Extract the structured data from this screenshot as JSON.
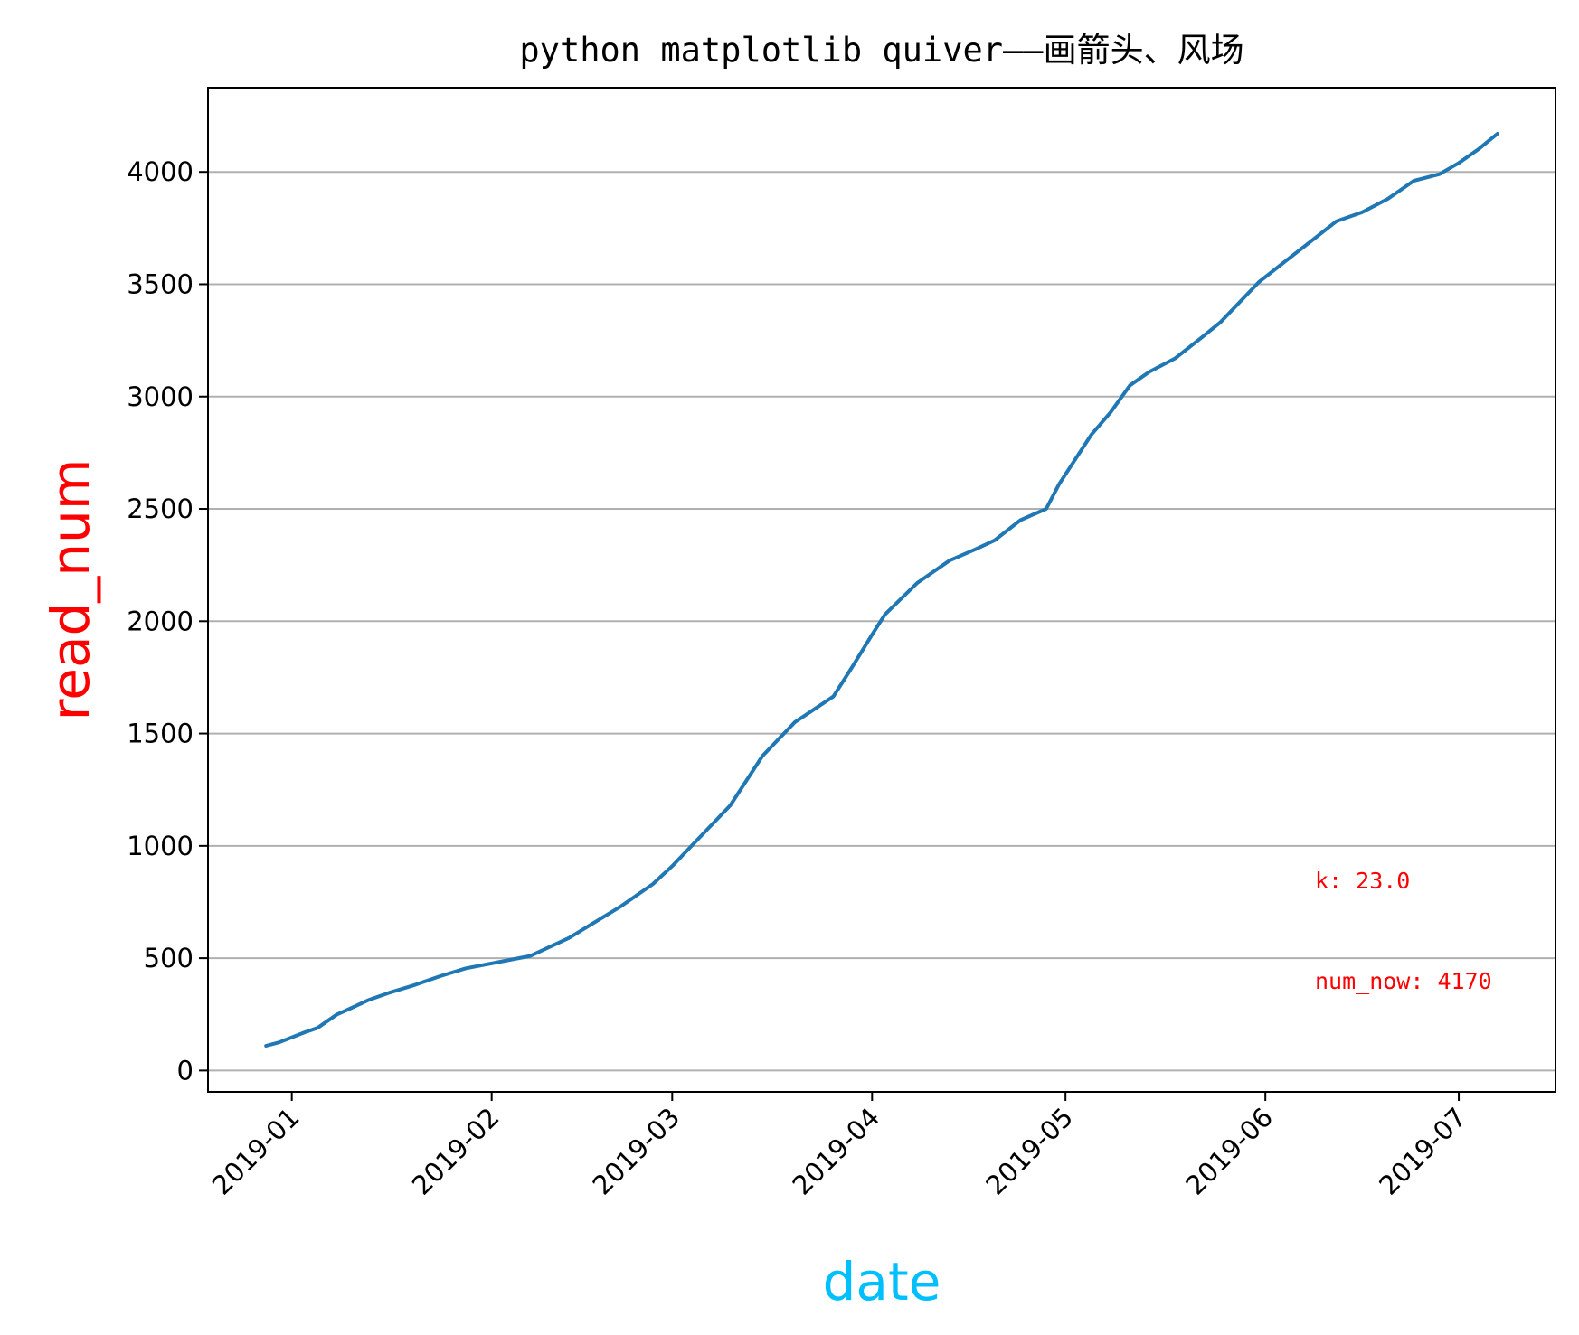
{
  "chart_data": {
    "type": "line",
    "title": "python matplotlib quiver——画箭头、风场",
    "xlabel": "date",
    "ylabel": "read_num",
    "xlabel_color": "#00bfff",
    "ylabel_color": "#ff0000",
    "line_color": "#1f77b4",
    "grid": "y-major",
    "xlim": [
      "2018-12-19",
      "2019-07-16"
    ],
    "ylim": [
      -95,
      4375
    ],
    "x_ticks": [
      "2019-01-01",
      "2019-02-01",
      "2019-03-01",
      "2019-04-01",
      "2019-05-01",
      "2019-06-01",
      "2019-07-01"
    ],
    "x_tick_labels": [
      "2019-01",
      "2019-02",
      "2019-03",
      "2019-04",
      "2019-05",
      "2019-06",
      "2019-07"
    ],
    "y_ticks": [
      0,
      500,
      1000,
      1500,
      2000,
      2500,
      3000,
      3500,
      4000
    ],
    "y_tick_labels": [
      "0",
      "500",
      "1000",
      "1500",
      "2000",
      "2500",
      "3000",
      "3500",
      "4000"
    ],
    "series": [
      {
        "x": [
          "2018-12-28",
          "2018-12-30",
          "2019-01-03",
          "2019-01-05",
          "2019-01-08",
          "2019-01-10",
          "2019-01-13",
          "2019-01-16",
          "2019-01-20",
          "2019-01-24",
          "2019-01-28",
          "2019-02-07",
          "2019-02-13",
          "2019-02-21",
          "2019-02-26",
          "2019-03-01",
          "2019-03-10",
          "2019-03-15",
          "2019-03-20",
          "2019-03-26",
          "2019-03-29",
          "2019-04-01",
          "2019-04-03",
          "2019-04-08",
          "2019-04-13",
          "2019-04-17",
          "2019-04-20",
          "2019-04-24",
          "2019-04-28",
          "2019-04-30",
          "2019-05-05",
          "2019-05-08",
          "2019-05-11",
          "2019-05-14",
          "2019-05-18",
          "2019-05-22",
          "2019-05-25",
          "2019-05-28",
          "2019-05-31",
          "2019-06-04",
          "2019-06-08",
          "2019-06-12",
          "2019-06-16",
          "2019-06-20",
          "2019-06-24",
          "2019-06-28",
          "2019-07-01",
          "2019-07-04",
          "2019-07-07"
        ],
        "y": [
          110,
          125,
          170,
          190,
          250,
          275,
          315,
          345,
          380,
          420,
          455,
          510,
          590,
          730,
          830,
          910,
          1180,
          1400,
          1550,
          1665,
          1800,
          1940,
          2030,
          2170,
          2270,
          2320,
          2360,
          2450,
          2500,
          2610,
          2830,
          2930,
          3050,
          3110,
          3170,
          3260,
          3330,
          3420,
          3510,
          3600,
          3690,
          3780,
          3820,
          3880,
          3960,
          3990,
          4040,
          4100,
          4170
        ]
      }
    ],
    "annotations": [
      "k: 23.0",
      "num_now: 4170"
    ],
    "annotation_color": "#ff0000"
  }
}
